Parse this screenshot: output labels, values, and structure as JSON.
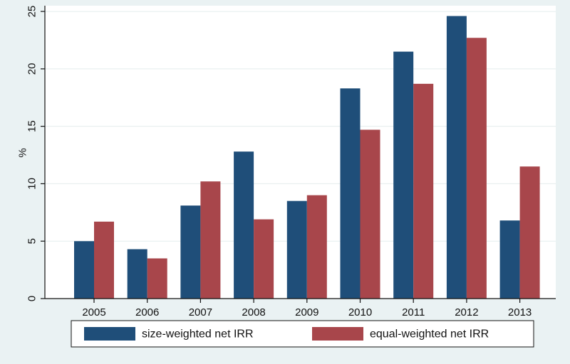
{
  "chart_data": {
    "type": "bar",
    "title": "",
    "xlabel": "",
    "ylabel": "%",
    "categories": [
      "2005",
      "2006",
      "2007",
      "2008",
      "2009",
      "2010",
      "2011",
      "2012",
      "2013"
    ],
    "series": [
      {
        "name": "size-weighted net IRR",
        "color": "#1f4e79",
        "values": [
          5.0,
          4.3,
          8.1,
          12.8,
          8.5,
          18.3,
          21.5,
          24.6,
          6.8
        ]
      },
      {
        "name": "equal-weighted net IRR",
        "color": "#a8464b",
        "values": [
          6.7,
          3.5,
          10.2,
          6.9,
          9.0,
          14.7,
          18.7,
          22.7,
          11.5
        ]
      }
    ],
    "ylim": [
      0,
      25.5
    ],
    "yticks": [
      0,
      5,
      10,
      15,
      20,
      25
    ],
    "grid": true,
    "legend_position": "bottom",
    "colors": {
      "background": "#eaf2f3",
      "plot_background": "#ffffff",
      "grid": "#e4eded"
    }
  }
}
